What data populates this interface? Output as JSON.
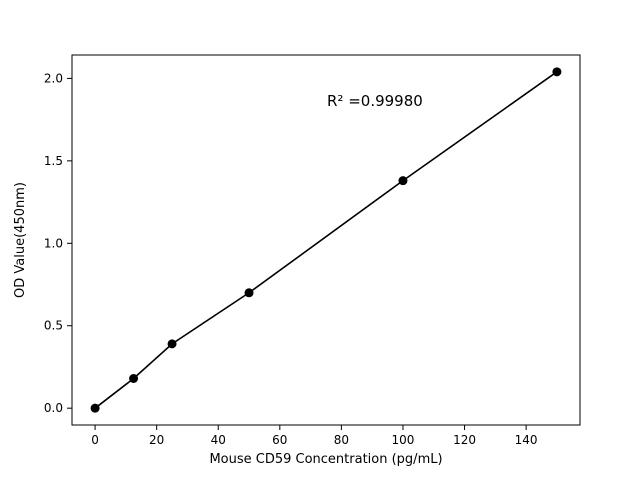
{
  "figure": {
    "background": "#ffffff"
  },
  "chart_data": {
    "type": "scatter",
    "x": [
      0,
      12.5,
      25,
      50,
      100,
      150
    ],
    "y": [
      0.0,
      0.18,
      0.39,
      0.7,
      1.38,
      2.04
    ],
    "line_through_points": true,
    "title": "",
    "xlabel": "Mouse CD59 Concentration (pg/mL)",
    "ylabel": "OD Value(450nm)",
    "annotation": "R² =0.99980",
    "xlim": [
      -7.5,
      157.5
    ],
    "ylim": [
      -0.102,
      2.142
    ],
    "xticks": [
      0,
      20,
      40,
      60,
      80,
      100,
      120,
      140
    ],
    "xtick_labels": [
      "0",
      "20",
      "40",
      "60",
      "80",
      "100",
      "120",
      "140"
    ],
    "yticks": [
      0.0,
      0.5,
      1.0,
      1.5,
      2.0
    ],
    "ytick_labels": [
      "0.0",
      "0.5",
      "1.0",
      "1.5",
      "2.0"
    ],
    "grid": false,
    "legend": null,
    "marker_color": "#000000",
    "line_color": "#000000"
  }
}
